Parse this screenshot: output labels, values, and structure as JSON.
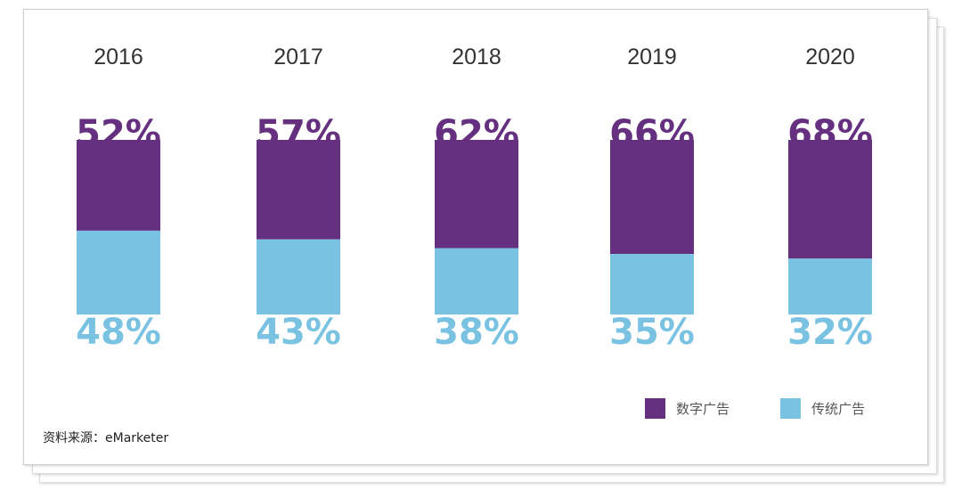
{
  "chart_data": {
    "type": "bar",
    "stacked": true,
    "percent_stacked": true,
    "categories": [
      "2016",
      "2017",
      "2018",
      "2019",
      "2020"
    ],
    "series": [
      {
        "name": "数字广告",
        "values": [
          52,
          57,
          62,
          66,
          68
        ],
        "labels": [
          "52%",
          "57%",
          "62%",
          "66%",
          "68%"
        ],
        "color": "#65307f"
      },
      {
        "name": "传统广告",
        "values": [
          48,
          43,
          38,
          35,
          32
        ],
        "labels": [
          "48%",
          "43%",
          "38%",
          "35%",
          "32%"
        ],
        "color": "#79c2e2"
      }
    ],
    "legend_position": "bottom-right",
    "ylim": [
      0,
      100
    ],
    "grid": false
  },
  "legend": {
    "digital_label": "数字广告",
    "traditional_label": "传统广告"
  },
  "source_text": "资料来源：eMarketer"
}
